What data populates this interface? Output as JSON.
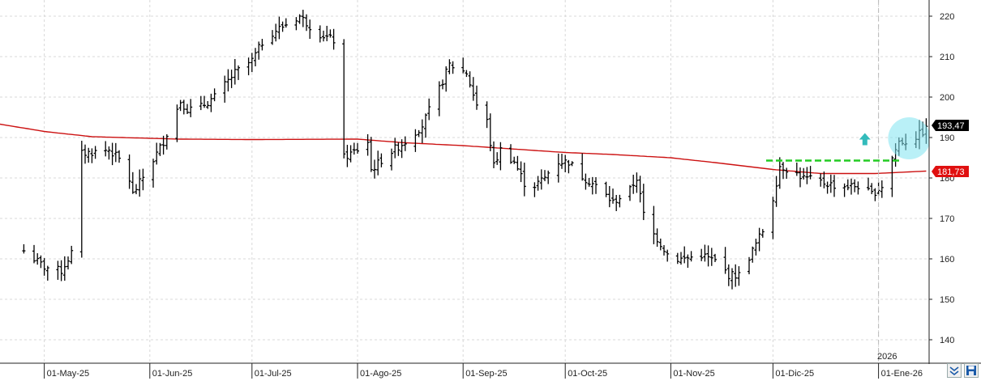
{
  "chart_data": {
    "type": "ohlc",
    "title": "",
    "xlabel": "",
    "ylabel": "",
    "ylim": [
      134,
      224
    ],
    "y_ticks": [
      140,
      150,
      160,
      170,
      180,
      190,
      200,
      210,
      220
    ],
    "x_ticks": [
      "01-May-25",
      "01-Jun-25",
      "01-Jul-25",
      "01-Ago-25",
      "01-Sep-25",
      "01-Oct-25",
      "01-Nov-25",
      "01-Dic-25",
      "01-Ene-26"
    ],
    "year_label": "2026",
    "grid": true,
    "last_price": "193,47",
    "moving_average_value": "181,73",
    "colors": {
      "bars": "#000000",
      "moving_average": "#cc1111",
      "support_line": "#22cc22",
      "last_price_badge": "#000000",
      "moving_average_badge": "#e01010",
      "highlight_circle": "#7fe3f0",
      "arrow": "#33bbbb",
      "grid": "#d8d8d8"
    },
    "price_anchors": [
      [
        "2025-04-25",
        162
      ],
      [
        "2025-05-01",
        158
      ],
      [
        "2025-05-06",
        157
      ],
      [
        "2025-05-10",
        163
      ],
      [
        "2025-05-12",
        186
      ],
      [
        "2025-05-20",
        187
      ],
      [
        "2025-05-25",
        183
      ],
      [
        "2025-05-27",
        176
      ],
      [
        "2025-06-01",
        183
      ],
      [
        "2025-06-05",
        189
      ],
      [
        "2025-06-10",
        199
      ],
      [
        "2025-06-12",
        197
      ],
      [
        "2025-06-15",
        197
      ],
      [
        "2025-06-20",
        200
      ],
      [
        "2025-06-26",
        206
      ],
      [
        "2025-07-01",
        209
      ],
      [
        "2025-07-05",
        215
      ],
      [
        "2025-07-15",
        220
      ],
      [
        "2025-07-20",
        216
      ],
      [
        "2025-07-25",
        214
      ],
      [
        "2025-07-26",
        193
      ],
      [
        "2025-07-28",
        185
      ],
      [
        "2025-08-01",
        187
      ],
      [
        "2025-08-04",
        189
      ],
      [
        "2025-08-05",
        182
      ],
      [
        "2025-08-10",
        186
      ],
      [
        "2025-08-15",
        189
      ],
      [
        "2025-08-20",
        193
      ],
      [
        "2025-08-25",
        202
      ],
      [
        "2025-08-28",
        208
      ],
      [
        "2025-09-02",
        206
      ],
      [
        "2025-09-05",
        198
      ],
      [
        "2025-09-08",
        194
      ],
      [
        "2025-09-10",
        183
      ],
      [
        "2025-09-12",
        187
      ],
      [
        "2025-09-16",
        184
      ],
      [
        "2025-09-20",
        177
      ],
      [
        "2025-09-25",
        180
      ],
      [
        "2025-09-28",
        184
      ],
      [
        "2025-10-02",
        184
      ],
      [
        "2025-10-05",
        181
      ],
      [
        "2025-10-10",
        178
      ],
      [
        "2025-10-15",
        174
      ],
      [
        "2025-10-20",
        177
      ],
      [
        "2025-10-22",
        180
      ],
      [
        "2025-10-24",
        171
      ],
      [
        "2025-10-26",
        167
      ],
      [
        "2025-10-28",
        165
      ],
      [
        "2025-11-01",
        160
      ],
      [
        "2025-11-05",
        160
      ],
      [
        "2025-11-10",
        161
      ],
      [
        "2025-11-15",
        159
      ],
      [
        "2025-11-18",
        156
      ],
      [
        "2025-11-21",
        156
      ],
      [
        "2025-11-25",
        162
      ],
      [
        "2025-11-28",
        167
      ],
      [
        "2025-12-01",
        175
      ],
      [
        "2025-12-03",
        183
      ],
      [
        "2025-12-06",
        182
      ],
      [
        "2025-12-10",
        180
      ],
      [
        "2025-12-15",
        179
      ],
      [
        "2025-12-20",
        178
      ],
      [
        "2025-12-26",
        178
      ],
      [
        "2025-12-30",
        176
      ],
      [
        "2026-01-02",
        178
      ],
      [
        "2026-01-05",
        185
      ],
      [
        "2026-01-07",
        189
      ],
      [
        "2026-01-10",
        189
      ],
      [
        "2026-01-15",
        192
      ]
    ],
    "ma_anchors": [
      [
        "2025-04-18",
        193.3
      ],
      [
        "2025-05-01",
        191.5
      ],
      [
        "2025-05-15",
        190.2
      ],
      [
        "2025-06-10",
        189.6
      ],
      [
        "2025-07-01",
        189.5
      ],
      [
        "2025-08-01",
        189.6
      ],
      [
        "2025-08-15",
        188.7
      ],
      [
        "2025-09-01",
        188.0
      ],
      [
        "2025-09-15",
        187.2
      ],
      [
        "2025-10-01",
        186.3
      ],
      [
        "2025-10-15",
        185.8
      ],
      [
        "2025-11-01",
        185.0
      ],
      [
        "2025-11-15",
        183.7
      ],
      [
        "2025-12-01",
        182.1
      ],
      [
        "2025-12-15",
        181.1
      ],
      [
        "2025-12-31",
        181.1
      ],
      [
        "2026-01-15",
        181.7
      ]
    ],
    "support_line": {
      "from": "2025-11-29",
      "to": "2026-01-08",
      "value": 184.3
    },
    "vertical_marker_date": "2026-01-01",
    "highlight": {
      "date": "2026-01-10",
      "value": 189.8
    },
    "arrow_annotation": {
      "date": "2025-12-28",
      "value": 189.5
    }
  }
}
